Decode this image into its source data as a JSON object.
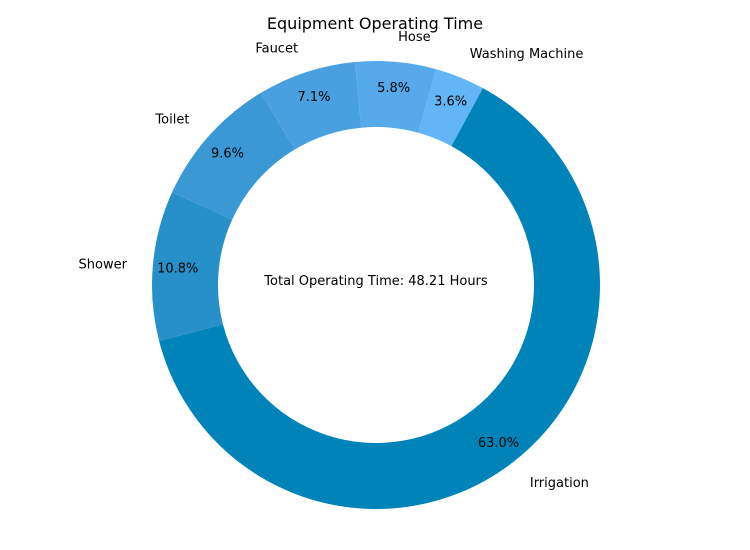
{
  "chart_data": {
    "type": "pie",
    "title": "Equipment Operating Time",
    "center_text": "Total Operating Time: 48.21 Hours",
    "donut": true,
    "slices": [
      {
        "label": "Washing Machine",
        "value": 3.6,
        "pct_label": "3.6%",
        "color": "#62b6f5"
      },
      {
        "label": "Hose",
        "value": 5.8,
        "pct_label": "5.8%",
        "color": "#56aaea"
      },
      {
        "label": "Faucet",
        "value": 7.1,
        "pct_label": "7.1%",
        "color": "#48a0df"
      },
      {
        "label": "Toilet",
        "value": 9.6,
        "pct_label": "9.6%",
        "color": "#3a98d4"
      },
      {
        "label": "Shower",
        "value": 10.8,
        "pct_label": "10.8%",
        "color": "#2890c8"
      },
      {
        "label": "Irrigation",
        "value": 63.0,
        "pct_label": "63.0%",
        "color": "#0083b9"
      }
    ]
  }
}
